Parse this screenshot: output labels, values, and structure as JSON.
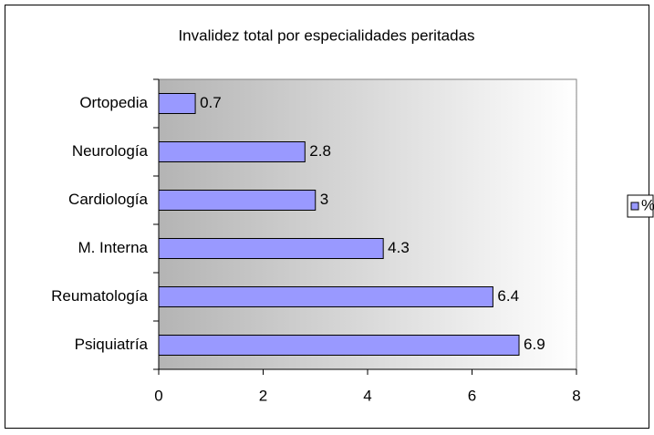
{
  "chart_data": {
    "type": "barh",
    "title": "Invalidez total por especialidades peritadas",
    "categories": [
      "Ortopedia",
      "Neurología",
      "Cardiología",
      "M. Interna",
      "Reumatología",
      "Psiquiatría"
    ],
    "series": [
      {
        "name": "%",
        "color": "#9999ff",
        "values": [
          0.7,
          2.8,
          3,
          4.3,
          6.4,
          6.9
        ]
      }
    ],
    "xlim": [
      0,
      8
    ],
    "xticks": [
      0,
      2,
      4,
      6,
      8
    ],
    "legend": "right"
  }
}
